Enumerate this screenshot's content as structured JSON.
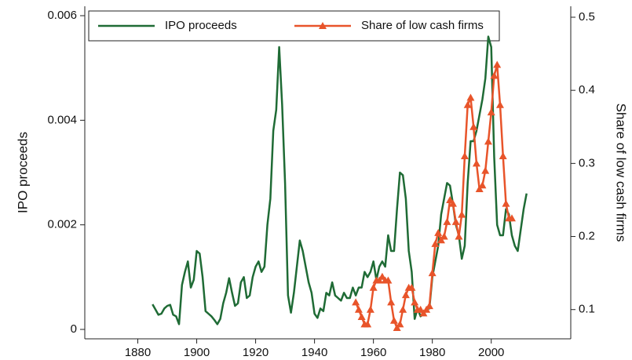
{
  "chart_data": {
    "type": "line",
    "y_label": "IPO proceeds",
    "y2_label": "Share of low cash firms",
    "x": [
      1885,
      1886,
      1887,
      1888,
      1889,
      1890,
      1891,
      1892,
      1893,
      1894,
      1895,
      1896,
      1897,
      1898,
      1899,
      1900,
      1901,
      1902,
      1903,
      1904,
      1905,
      1906,
      1907,
      1908,
      1909,
      1910,
      1911,
      1912,
      1913,
      1914,
      1915,
      1916,
      1917,
      1918,
      1919,
      1920,
      1921,
      1922,
      1923,
      1924,
      1925,
      1926,
      1927,
      1928,
      1929,
      1930,
      1931,
      1932,
      1933,
      1934,
      1935,
      1936,
      1937,
      1938,
      1939,
      1940,
      1941,
      1942,
      1943,
      1944,
      1945,
      1946,
      1947,
      1948,
      1949,
      1950,
      1951,
      1952,
      1953,
      1954,
      1955,
      1956,
      1957,
      1958,
      1959,
      1960,
      1961,
      1962,
      1963,
      1964,
      1965,
      1966,
      1967,
      1968,
      1969,
      1970,
      1971,
      1972,
      1973,
      1974,
      1975,
      1976,
      1977,
      1978,
      1979,
      1980,
      1981,
      1982,
      1983,
      1984,
      1985,
      1986,
      1987,
      1988,
      1989,
      1990,
      1991,
      1992,
      1993,
      1994,
      1995,
      1996,
      1997,
      1998,
      1999,
      2000,
      2001,
      2002,
      2003,
      2004,
      2005,
      2006,
      2007,
      2008,
      2009,
      2010,
      2011,
      2012
    ],
    "series": [
      {
        "name": "IPO proceeds",
        "color": "#1f6b35",
        "axis": "y",
        "values": [
          0.00048,
          0.00038,
          0.00028,
          0.0003,
          0.0004,
          0.00045,
          0.00047,
          0.00028,
          0.00025,
          0.0001,
          0.00085,
          0.0011,
          0.0013,
          0.0008,
          0.00095,
          0.0015,
          0.00145,
          0.001,
          0.00035,
          0.0003,
          0.00025,
          0.00018,
          0.0001,
          0.0002,
          0.0005,
          0.0007,
          0.00098,
          0.0007,
          0.00045,
          0.0005,
          0.0009,
          0.001,
          0.0006,
          0.00065,
          0.001,
          0.0012,
          0.0013,
          0.0011,
          0.0012,
          0.002,
          0.0025,
          0.0038,
          0.0042,
          0.0054,
          0.0043,
          0.0028,
          0.00065,
          0.00032,
          0.0007,
          0.0012,
          0.0017,
          0.0015,
          0.0012,
          0.0009,
          0.0007,
          0.0003,
          0.00022,
          0.0004,
          0.00035,
          0.0007,
          0.00065,
          0.0009,
          0.00065,
          0.0006,
          0.00055,
          0.0007,
          0.0006,
          0.0006,
          0.0008,
          0.00065,
          0.0008,
          0.0008,
          0.0011,
          0.001,
          0.0011,
          0.0013,
          0.00095,
          0.0012,
          0.0013,
          0.0012,
          0.0018,
          0.0015,
          0.0015,
          0.0023,
          0.003,
          0.00295,
          0.0025,
          0.0015,
          0.0011,
          0.0002,
          0.0004,
          0.00025,
          0.0003,
          0.0004,
          0.0004,
          0.001,
          0.0013,
          0.0016,
          0.0022,
          0.0025,
          0.0028,
          0.00275,
          0.0024,
          0.002,
          0.0018,
          0.00135,
          0.0016,
          0.0028,
          0.0036,
          0.0036,
          0.0038,
          0.0041,
          0.0044,
          0.0048,
          0.0056,
          0.0054,
          0.0033,
          0.002,
          0.0018,
          0.0018,
          0.0023,
          0.0022,
          0.0018,
          0.0016,
          0.0015,
          0.0019,
          0.0023,
          0.0026
        ]
      },
      {
        "name": "Share of low cash firms",
        "color": "#e8542a",
        "axis": "y2",
        "marker": "triangle",
        "values": [
          null,
          null,
          null,
          null,
          null,
          null,
          null,
          null,
          null,
          null,
          null,
          null,
          null,
          null,
          null,
          null,
          null,
          null,
          null,
          null,
          null,
          null,
          null,
          null,
          null,
          null,
          null,
          null,
          null,
          null,
          null,
          null,
          null,
          null,
          null,
          null,
          null,
          null,
          null,
          null,
          null,
          null,
          null,
          null,
          null,
          null,
          null,
          null,
          null,
          null,
          null,
          null,
          null,
          null,
          null,
          null,
          null,
          null,
          null,
          null,
          null,
          null,
          null,
          null,
          null,
          null,
          null,
          null,
          null,
          0.11,
          0.1,
          0.09,
          0.08,
          0.08,
          0.1,
          0.13,
          0.14,
          0.14,
          0.145,
          0.14,
          0.14,
          0.11,
          0.085,
          0.075,
          0.08,
          0.1,
          0.12,
          0.13,
          0.13,
          0.11,
          0.1,
          0.1,
          0.095,
          0.1,
          0.105,
          0.15,
          0.19,
          0.205,
          0.195,
          0.2,
          0.22,
          0.25,
          0.245,
          0.22,
          0.2,
          0.23,
          0.31,
          0.38,
          0.39,
          0.35,
          0.3,
          0.265,
          0.27,
          0.29,
          0.33,
          0.37,
          0.42,
          0.435,
          0.38,
          0.31,
          0.245,
          0.225,
          0.225,
          null,
          null,
          null,
          null,
          null
        ]
      }
    ],
    "xlim": [
      1862,
      2027
    ],
    "xticks": [
      1880,
      1900,
      1920,
      1940,
      1960,
      1980,
      2000
    ],
    "ylim": [
      -0.00018,
      0.00618
    ],
    "yticks": [
      0,
      0.002,
      0.004,
      0.006
    ],
    "y2lim": [
      0.06,
      0.515
    ],
    "y2ticks": [
      0.1,
      0.2,
      0.3,
      0.4,
      0.5
    ],
    "legend": "top"
  }
}
